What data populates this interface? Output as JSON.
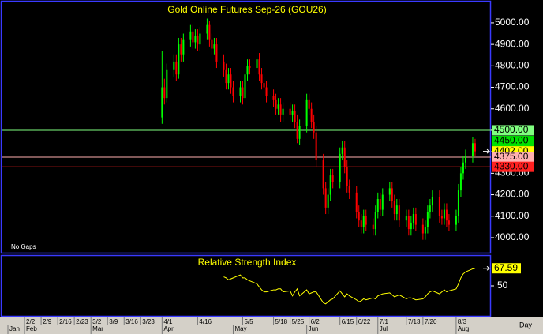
{
  "chart_data": [
    {
      "type": "candlestick",
      "title": "Gold Online Futures Sep-26 (GOU26)",
      "annotation": "No Gaps",
      "up_color": "#00ff00",
      "down_color": "#ff0000",
      "x": [
        "4/1",
        "4/2",
        "4/3",
        "4/6",
        "4/7",
        "4/8",
        "4/9",
        "4/10",
        "4/13",
        "4/14",
        "4/15",
        "4/16",
        "4/17",
        "4/20",
        "4/21",
        "4/22",
        "4/23",
        "4/24",
        "4/27",
        "4/28",
        "4/29",
        "4/30",
        "5/1",
        "5/4",
        "5/5",
        "5/6",
        "5/7",
        "5/8",
        "5/11",
        "5/12",
        "5/13",
        "5/14",
        "5/15",
        "5/18",
        "5/19",
        "5/20",
        "5/21",
        "5/22",
        "5/25",
        "5/26",
        "5/27",
        "5/28",
        "5/29",
        "6/1",
        "6/2",
        "6/3",
        "6/4",
        "6/5",
        "6/8",
        "6/9",
        "6/10",
        "6/11",
        "6/12",
        "6/15",
        "6/16",
        "6/17",
        "6/18",
        "6/19",
        "6/22",
        "6/23",
        "6/24",
        "6/25",
        "6/26",
        "6/29",
        "6/30",
        "7/1",
        "7/2",
        "7/3",
        "7/6",
        "7/7",
        "7/8",
        "7/9",
        "7/10",
        "7/13",
        "7/14",
        "7/15",
        "7/16",
        "7/17",
        "7/20",
        "7/21",
        "7/22",
        "7/23",
        "7/24",
        "7/27",
        "7/28",
        "7/29",
        "7/30",
        "7/31",
        "8/3",
        "8/4",
        "8/5",
        "8/6",
        "8/7",
        "8/10",
        "8/11"
      ],
      "open": [
        4560,
        4700,
        4650,
        4780,
        4820,
        4760,
        4900,
        4850,
        4920,
        4960,
        4910,
        4940,
        4900,
        4950,
        4990,
        4920,
        4880,
        4900,
        4820,
        4780,
        4720,
        4760,
        4700,
        4660,
        4700,
        4650,
        4760,
        4800,
        4790,
        4830,
        4760,
        4720,
        4700,
        4660,
        4640,
        4600,
        4620,
        4570,
        4600,
        4570,
        4590,
        4540,
        4460,
        4520,
        4640,
        4600,
        4540,
        4490,
        4360,
        4230,
        4140,
        4200,
        4290,
        4260,
        4390,
        4420,
        4330,
        4240,
        4210,
        4120,
        4080,
        4050,
        4100,
        4060,
        4040,
        4120,
        4180,
        4130,
        4200,
        4230,
        4170,
        4110,
        4150,
        4080,
        4100,
        4040,
        4070,
        4110,
        4060,
        4020,
        4050,
        4120,
        4150,
        4190,
        4100,
        4090,
        4130,
        4080,
        4060,
        4100,
        4220,
        4300,
        4350,
        4380,
        4440
      ],
      "high": [
        4870,
        4740,
        4810,
        4850,
        4850,
        4930,
        4930,
        4950,
        4990,
        4990,
        4970,
        4970,
        4980,
        5020,
        5010,
        4950,
        4930,
        4930,
        4850,
        4810,
        4790,
        4790,
        4730,
        4730,
        4730,
        4790,
        4830,
        4830,
        4860,
        4860,
        4790,
        4750,
        4730,
        4690,
        4670,
        4650,
        4650,
        4630,
        4630,
        4620,
        4620,
        4570,
        4550,
        4670,
        4670,
        4630,
        4570,
        4520,
        4390,
        4260,
        4230,
        4320,
        4320,
        4420,
        4450,
        4450,
        4360,
        4270,
        4240,
        4150,
        4110,
        4130,
        4130,
        4090,
        4150,
        4210,
        4210,
        4230,
        4260,
        4260,
        4200,
        4180,
        4180,
        4130,
        4130,
        4100,
        4140,
        4140,
        4090,
        4080,
        4150,
        4180,
        4220,
        4220,
        4130,
        4160,
        4160,
        4110,
        4130,
        4250,
        4330,
        4380,
        4410,
        4470,
        4460
      ],
      "low": [
        4530,
        4620,
        4630,
        4750,
        4730,
        4740,
        4820,
        4820,
        4890,
        4880,
        4880,
        4870,
        4870,
        4920,
        4890,
        4850,
        4850,
        4790,
        4750,
        4690,
        4690,
        4670,
        4630,
        4630,
        4620,
        4620,
        4730,
        4760,
        4760,
        4730,
        4690,
        4670,
        4630,
        4610,
        4570,
        4570,
        4540,
        4540,
        4540,
        4540,
        4510,
        4440,
        4430,
        4490,
        4570,
        4510,
        4460,
        4330,
        4200,
        4110,
        4110,
        4170,
        4230,
        4230,
        4360,
        4300,
        4210,
        4180,
        4090,
        4050,
        4020,
        4020,
        4030,
        4010,
        4010,
        4090,
        4100,
        4100,
        4170,
        4140,
        4080,
        4080,
        4050,
        4050,
        4010,
        4010,
        4040,
        4030,
        3990,
        3990,
        4020,
        4090,
        4120,
        4070,
        4060,
        4060,
        4050,
        4030,
        4030,
        4070,
        4190,
        4270,
        4320,
        4350,
        4380
      ],
      "close": [
        4700,
        4650,
        4780,
        4820,
        4760,
        4900,
        4850,
        4920,
        4960,
        4910,
        4940,
        4900,
        4950,
        4990,
        4920,
        4880,
        4900,
        4820,
        4780,
        4720,
        4760,
        4700,
        4660,
        4700,
        4650,
        4760,
        4800,
        4790,
        4830,
        4760,
        4720,
        4700,
        4660,
        4640,
        4600,
        4620,
        4570,
        4600,
        4570,
        4590,
        4540,
        4460,
        4520,
        4640,
        4600,
        4540,
        4490,
        4360,
        4230,
        4140,
        4200,
        4290,
        4260,
        4390,
        4420,
        4330,
        4240,
        4210,
        4120,
        4080,
        4050,
        4100,
        4060,
        4040,
        4120,
        4180,
        4130,
        4200,
        4230,
        4170,
        4110,
        4150,
        4080,
        4100,
        4040,
        4070,
        4110,
        4060,
        4020,
        4050,
        4120,
        4150,
        4190,
        4100,
        4090,
        4130,
        4080,
        4060,
        4100,
        4220,
        4300,
        4350,
        4380,
        4440,
        4402
      ],
      "ylim": [
        3930,
        5099
      ],
      "yticks": [
        {
          "value": 4000,
          "label": "4000.00"
        },
        {
          "value": 4100,
          "label": "4100.00"
        },
        {
          "value": 4200,
          "label": "4200.00"
        },
        {
          "value": 4300,
          "label": "4300.00"
        },
        {
          "value": 4400,
          "label": "4400.00"
        },
        {
          "value": 4500,
          "label": "4500.00"
        },
        {
          "value": 4600,
          "label": "4600.00"
        },
        {
          "value": 4700,
          "label": "4700.00"
        },
        {
          "value": 4800,
          "label": "4800.00"
        },
        {
          "value": 4900,
          "label": "4900.00"
        },
        {
          "value": 5000,
          "label": "5000.00"
        }
      ],
      "levels": [
        {
          "value": 4500,
          "label": "4500.00",
          "color": "#80ff80",
          "line": true
        },
        {
          "value": 4450,
          "label": "4450.00",
          "color": "#00e000",
          "line": true
        },
        {
          "value": 4402,
          "label": "4402.00",
          "color": "#ffff00",
          "line": false
        },
        {
          "value": 4375,
          "label": "4375.00",
          "color": "#ffb0b0",
          "line": true
        },
        {
          "value": 4330,
          "label": "4330.00",
          "color": "#ff2020",
          "line": true
        }
      ],
      "xlim": [
        "1/24",
        "8/17"
      ],
      "xticks": [
        "2/2",
        "2/9",
        "2/16",
        "2/23",
        "3/2",
        "3/9",
        "3/16",
        "3/23",
        "4/1",
        "4/16",
        "5/5",
        "5/18",
        "5/25",
        "6/2",
        "6/15",
        "6/22",
        "7/1",
        "7/13",
        "7/20",
        "8/3"
      ],
      "month_ticks": [
        {
          "value": "1/26",
          "label": "Jan"
        },
        {
          "value": "2/2",
          "label": "Feb"
        },
        {
          "value": "3/2",
          "label": "Mar"
        },
        {
          "value": "4/1",
          "label": "Apr"
        },
        {
          "value": "5/1",
          "label": "May"
        },
        {
          "value": "6/1",
          "label": "Jun"
        },
        {
          "value": "7/1",
          "label": "Jul"
        },
        {
          "value": "8/3",
          "label": "Aug"
        }
      ]
    },
    {
      "type": "line",
      "title": "Relative Strength Index",
      "color": "#ffff00",
      "xlabel": "Day",
      "values": [
        null,
        null,
        null,
        null,
        null,
        null,
        null,
        null,
        null,
        null,
        null,
        null,
        null,
        null,
        null,
        null,
        null,
        null,
        59,
        58,
        56,
        57,
        58,
        61,
        58,
        58,
        56,
        55,
        52,
        49,
        46,
        44,
        44,
        46,
        46,
        47,
        47,
        44,
        45,
        40,
        44,
        47,
        40,
        46,
        42,
        43,
        44,
        44,
        33,
        32,
        34,
        36,
        37,
        45,
        42,
        39,
        42,
        40,
        36,
        34,
        35,
        37,
        36,
        38,
        37,
        40,
        41,
        42,
        43,
        41,
        39,
        40,
        41,
        37,
        38,
        38,
        37,
        36,
        37,
        39,
        42,
        44,
        45,
        42,
        44,
        46,
        44,
        45,
        47,
        52,
        58,
        62,
        64,
        67,
        67.59
      ],
      "ylim": [
        20,
        80
      ],
      "yticks": [
        50
      ]
    }
  ]
}
